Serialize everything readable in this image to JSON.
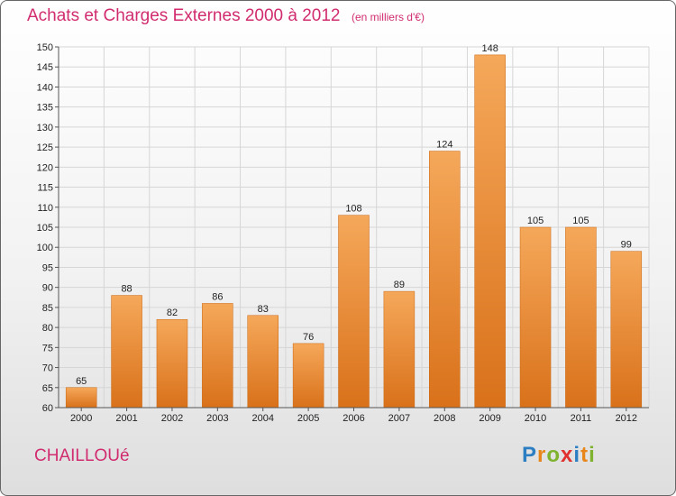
{
  "header": {
    "title": "Achats et Charges Externes 2000 à 2012",
    "unit": "(en milliers d'€)"
  },
  "footer": {
    "city": "CHAILLOUé",
    "logo_letters": [
      "P",
      "r",
      "o",
      "x",
      "i",
      "t",
      "i"
    ],
    "logo_colors": [
      "#2b7ec1",
      "#e8861a",
      "#7fb32f",
      "#e0312f",
      "#2b7ec1",
      "#e8861a",
      "#7fb32f"
    ]
  },
  "colors": {
    "title": "#d12c6f",
    "bar_top": "#f5a85a",
    "bar_bottom": "#d9711a",
    "grid": "#d6d6d6",
    "axis": "#555555"
  },
  "chart_data": {
    "type": "bar",
    "title": "Achats et Charges Externes 2000 à 2012",
    "subtitle": "(en milliers d'€)",
    "xlabel": "",
    "ylabel": "",
    "categories": [
      "2000",
      "2001",
      "2002",
      "2003",
      "2004",
      "2005",
      "2006",
      "2007",
      "2008",
      "2009",
      "2010",
      "2011",
      "2012"
    ],
    "values": [
      65,
      88,
      82,
      86,
      83,
      76,
      108,
      89,
      124,
      148,
      105,
      105,
      99
    ],
    "ylim": [
      60,
      150
    ],
    "ytick_step": 5,
    "grid": true,
    "legend": "none"
  }
}
